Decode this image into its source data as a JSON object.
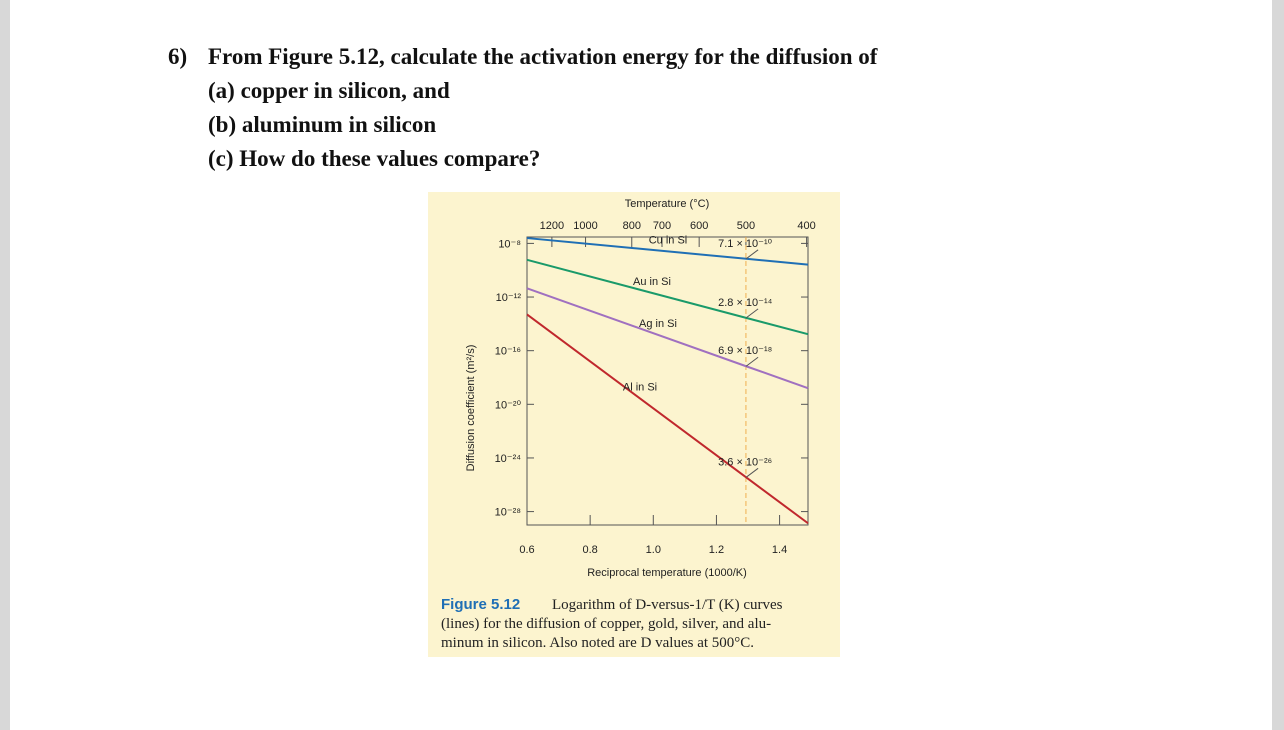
{
  "question": {
    "number": "6)",
    "lines": [
      "From Figure 5.12, calculate the activation energy for the diffusion of",
      "(a) copper in silicon, and",
      "(b) aluminum in silicon",
      "(c) How do these values compare?"
    ]
  },
  "chart_data": {
    "type": "line",
    "log_y": true,
    "x_label": "Reciprocal temperature (1000/K)",
    "x2_label": "Temperature (°C)",
    "y_label": "Diffusion coefficient (m²/s)",
    "xlim": [
      0.6,
      1.49
    ],
    "xticks": [
      0.6,
      0.8,
      {
        "value": 1.0,
        "label": "1.0"
      },
      1.2,
      1.4
    ],
    "x2ticks": [
      1200,
      1000,
      800,
      700,
      600,
      500,
      400
    ],
    "ylim": [
      1e-29,
      3e-08
    ],
    "yticks": [
      {
        "value": 1e-08,
        "label": "10⁻⁸"
      },
      {
        "value": 1e-12,
        "label": "10⁻¹²"
      },
      {
        "value": 1e-16,
        "label": "10⁻¹⁶"
      },
      {
        "value": 1e-20,
        "label": "10⁻²⁰"
      },
      {
        "value": 1e-24,
        "label": "10⁻²⁴"
      },
      {
        "value": 1e-28,
        "label": "10⁻²⁸"
      }
    ],
    "series": [
      {
        "name": "Cu in Si",
        "color": "#1f6fb5",
        "x": [
          0.6,
          1.294,
          1.49
        ],
        "values": [
          2.5e-08,
          7.1e-10,
          2.6e-10
        ],
        "value_labels": [
          null,
          "7.1 × 10⁻¹⁰",
          null
        ]
      },
      {
        "name": "Au in Si",
        "color": "#1a9a6a",
        "x": [
          0.6,
          1.294,
          1.49
        ],
        "values": [
          6e-10,
          2.8e-14,
          1.7e-15
        ],
        "value_labels": [
          null,
          "2.8 × 10⁻¹⁴",
          null
        ]
      },
      {
        "name": "Ag in Si",
        "color": "#a070c0",
        "x": [
          0.6,
          1.294,
          1.49
        ],
        "values": [
          4.5e-12,
          6.9e-18,
          1.6e-19
        ],
        "value_labels": [
          null,
          "6.9 × 10⁻¹⁸",
          null
        ]
      },
      {
        "name": "Al in Si",
        "color": "#c0282d",
        "x": [
          0.6,
          1.294,
          1.49
        ],
        "values": [
          5e-14,
          3.6e-26,
          1.35e-29
        ],
        "value_labels": [
          null,
          "3.6 × 10⁻²⁶",
          null
        ]
      }
    ]
  },
  "caption": {
    "label": "Figure 5.12",
    "lines": [
      "Logarithm of D-versus-1/T (K) curves",
      "(lines) for the diffusion of copper, gold, silver, and alu-",
      "minum in silicon. Also noted are D values at 500°C."
    ]
  }
}
